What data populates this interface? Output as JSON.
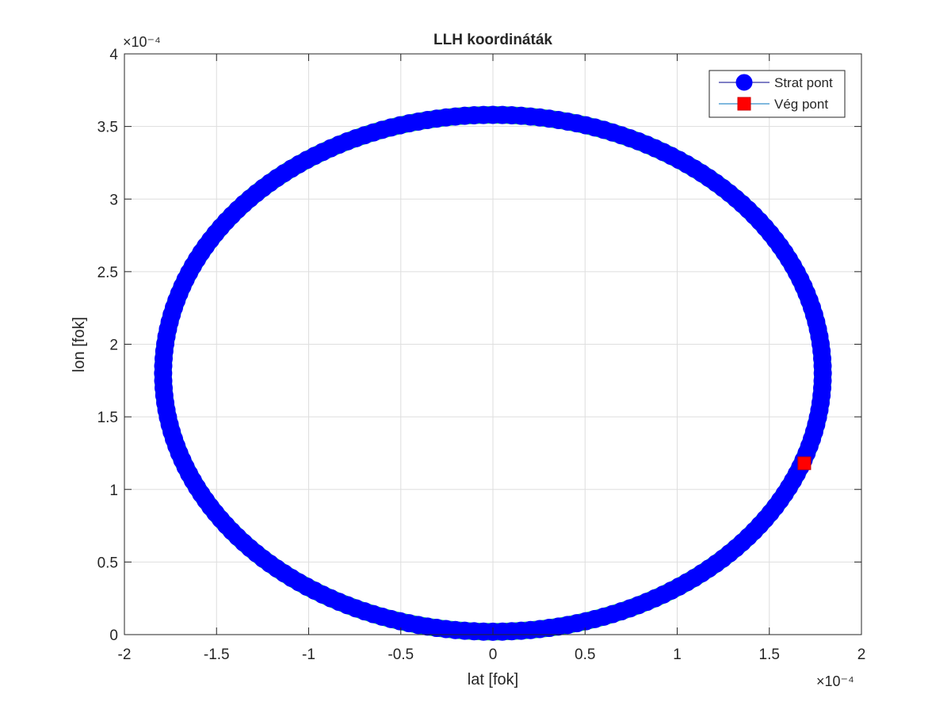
{
  "chart_data": {
    "type": "scatter",
    "title": "LLH koordináták",
    "xlabel": "lat [fok]",
    "ylabel": "lon [fok]",
    "x_exponent_label": "×10⁻⁴",
    "y_exponent_label": "×10⁻⁴",
    "xlim": [
      -2,
      2
    ],
    "ylim": [
      0,
      4
    ],
    "scale": "1e-4",
    "grid": true,
    "legend_position": "top-right",
    "x_ticks": [
      "-2",
      "-1.5",
      "-1",
      "-0.5",
      "0",
      "0.5",
      "1",
      "1.5",
      "2"
    ],
    "y_ticks": [
      "0",
      "0.5",
      "1",
      "1.5",
      "2",
      "2.5",
      "3",
      "3.5",
      "4"
    ],
    "series": [
      {
        "name": "Strat pont",
        "marker": "circle",
        "color": "#0000ff",
        "line_color": "#00008b",
        "trajectory": {
          "shape": "ellipse",
          "center_x": 0.0,
          "center_y": 1.8,
          "radius_x": 1.79,
          "radius_y": 1.78
        }
      },
      {
        "name": "Vég pont",
        "marker": "square",
        "color": "#ff0000",
        "line_color": "#0072bd",
        "points": [
          {
            "x": 1.69,
            "y": 1.18
          }
        ]
      }
    ]
  }
}
